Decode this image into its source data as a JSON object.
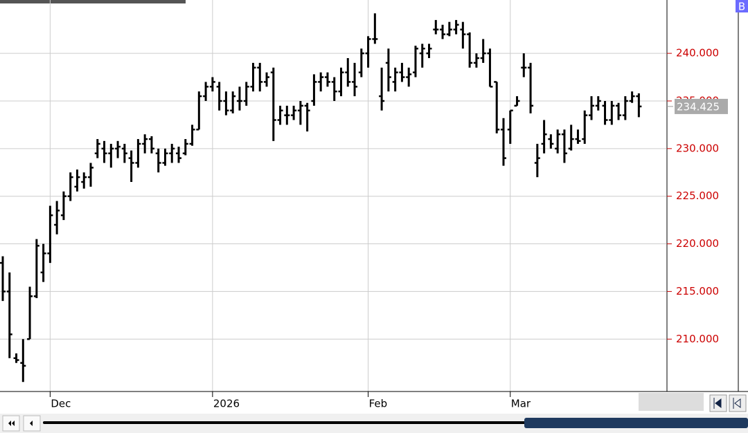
{
  "chart_data": {
    "type": "ohlc",
    "badge": "B",
    "categories": [
      null,
      null,
      null,
      null,
      null,
      null,
      null,
      "Dec",
      null,
      null,
      null,
      null,
      null,
      null,
      null,
      null,
      null,
      null,
      null,
      null,
      null,
      null,
      null,
      null,
      null,
      null,
      null,
      null,
      null,
      null,
      null,
      "2026",
      null,
      null,
      null,
      null,
      null,
      null,
      null,
      null,
      null,
      null,
      null,
      null,
      null,
      null,
      null,
      null,
      null,
      null,
      null,
      null,
      null,
      null,
      "Feb",
      null,
      null,
      null,
      null,
      null,
      null,
      null,
      null,
      null,
      null,
      null,
      null,
      null,
      null,
      null,
      null,
      null,
      null,
      null,
      null,
      "Mar",
      null,
      null,
      null,
      null,
      null,
      null,
      null,
      null,
      null,
      null,
      null,
      null,
      null,
      null,
      null,
      null,
      null,
      null,
      null
    ],
    "ohlc": [
      [
        218,
        218.7,
        214,
        215
      ],
      [
        215,
        217,
        208,
        210.5
      ],
      [
        208,
        208.5,
        207.5,
        207.8
      ],
      [
        207.5,
        210,
        205.5,
        207.2
      ],
      [
        210,
        215.5,
        210,
        214.5
      ],
      [
        214.5,
        220.5,
        214.3,
        219.8
      ],
      [
        217,
        220,
        216,
        219
      ],
      [
        219,
        224,
        218,
        223
      ],
      [
        222,
        224.5,
        221,
        223.5
      ],
      [
        223,
        225.5,
        222.5,
        225
      ],
      [
        225,
        227.5,
        224.5,
        227
      ],
      [
        226,
        227.8,
        225.5,
        227
      ],
      [
        226.5,
        227.5,
        225.8,
        227
      ],
      [
        227,
        228.5,
        226,
        228
      ],
      [
        229.5,
        231,
        229,
        230.5
      ],
      [
        230,
        230.8,
        228.5,
        229.5
      ],
      [
        229.5,
        230.5,
        228,
        230
      ],
      [
        230,
        230.8,
        229,
        230.2
      ],
      [
        230,
        230.5,
        228.5,
        229.5
      ],
      [
        229,
        229.8,
        226.5,
        228.5
      ],
      [
        228.5,
        231,
        228,
        230.5
      ],
      [
        230.5,
        231.5,
        229.5,
        231
      ],
      [
        231,
        231.3,
        229.5,
        230
      ],
      [
        229.5,
        230,
        227.5,
        228.5
      ],
      [
        228.5,
        230,
        228.2,
        229.5
      ],
      [
        229.5,
        230.5,
        228.5,
        230
      ],
      [
        229.5,
        230.2,
        228.5,
        229
      ],
      [
        229.5,
        231,
        229.3,
        230.5
      ],
      [
        230.5,
        232.5,
        230.3,
        232
      ],
      [
        232,
        236,
        232,
        235.5
      ],
      [
        235.5,
        237,
        235,
        236.5
      ],
      [
        236.5,
        237.5,
        236,
        237
      ],
      [
        236.5,
        237,
        234,
        235
      ],
      [
        235,
        236,
        233.5,
        234
      ],
      [
        234,
        236,
        233.7,
        235.5
      ],
      [
        235,
        236.5,
        234,
        235
      ],
      [
        235,
        237,
        234.5,
        236.5
      ],
      [
        236.5,
        239,
        236,
        238.5
      ],
      [
        238.5,
        239,
        236,
        237
      ],
      [
        237,
        238,
        236.5,
        237.5
      ],
      [
        238,
        238.5,
        230.8,
        233
      ],
      [
        233,
        234.5,
        232.5,
        234
      ],
      [
        233.5,
        234.5,
        232.5,
        233.5
      ],
      [
        233.5,
        234.5,
        233,
        234
      ],
      [
        234,
        235,
        232.5,
        234.5
      ],
      [
        234.5,
        234.8,
        231.8,
        234
      ],
      [
        235,
        237.8,
        234.5,
        237
      ],
      [
        237,
        238,
        236,
        237.5
      ],
      [
        237.5,
        238,
        236.5,
        237
      ],
      [
        237,
        237.5,
        235,
        236
      ],
      [
        236,
        238.5,
        235.5,
        238
      ],
      [
        238,
        239.5,
        236.5,
        237
      ],
      [
        237,
        239,
        235.5,
        236.5
      ],
      [
        238,
        240.5,
        237.5,
        240
      ],
      [
        240,
        241.8,
        238.5,
        241.5
      ],
      [
        241.5,
        244.2,
        241,
        241.5
      ],
      [
        235.5,
        238.5,
        234,
        235
      ],
      [
        239,
        240.5,
        236,
        237.5
      ],
      [
        237,
        238.5,
        236,
        238
      ],
      [
        238,
        239,
        237,
        237.5
      ],
      [
        237.5,
        238.5,
        236.5,
        237.8
      ],
      [
        238,
        240.8,
        237.5,
        240.5
      ],
      [
        240,
        241,
        238.5,
        240.5
      ],
      [
        240,
        241,
        239.5,
        240.5
      ],
      [
        242.5,
        243.5,
        242,
        242.5
      ],
      [
        242.5,
        243,
        241.5,
        242
      ],
      [
        242,
        243.3,
        241.8,
        242.5
      ],
      [
        242.5,
        243.5,
        242,
        243
      ],
      [
        242.5,
        243.3,
        240.5,
        242
      ],
      [
        242,
        242.2,
        238.5,
        239
      ],
      [
        239,
        240,
        238.5,
        239.5
      ],
      [
        239.5,
        241.5,
        239,
        240
      ],
      [
        240,
        240.5,
        236.5,
        236.5
      ],
      [
        237,
        237,
        231.6,
        232
      ],
      [
        232,
        233.2,
        228.2,
        229
      ],
      [
        232,
        234,
        230.5,
        234
      ],
      [
        234.5,
        235.5,
        234.5,
        235
      ],
      [
        238.5,
        240,
        237.5,
        238.5
      ],
      [
        238.5,
        239,
        233.7,
        234.5
      ],
      [
        228.5,
        230.5,
        227,
        229
      ],
      [
        230.5,
        233,
        229.5,
        231.5
      ],
      [
        231,
        231.5,
        230,
        230.5
      ],
      [
        230,
        232,
        229.5,
        231.5
      ],
      [
        231.5,
        232,
        228.5,
        229.5
      ],
      [
        230,
        232.5,
        229.8,
        231
      ],
      [
        231,
        232,
        230.5,
        230.8
      ],
      [
        231,
        234,
        230.5,
        233.5
      ],
      [
        233.5,
        235.5,
        233,
        234.5
      ],
      [
        234.5,
        235.5,
        234,
        235
      ],
      [
        234.5,
        235,
        232.5,
        233
      ],
      [
        233,
        235,
        232.5,
        234.5
      ],
      [
        234.5,
        234.8,
        233,
        233.5
      ],
      [
        233.5,
        235.5,
        233,
        235
      ],
      [
        235,
        236,
        234.8,
        235.5
      ],
      [
        235.5,
        235.8,
        233.3,
        234.425
      ]
    ],
    "color": "#000000",
    "tick_color": "#cc0000",
    "ylim": [
      204.5,
      245.6
    ],
    "yticks": [
      {
        "value": 210,
        "label": "210.000"
      },
      {
        "value": 215,
        "label": "215.000"
      },
      {
        "value": 220,
        "label": "220.000"
      },
      {
        "value": 225,
        "label": "225.000"
      },
      {
        "value": 230,
        "label": "230.000"
      },
      {
        "value": 235,
        "label": "235.000"
      },
      {
        "value": 240,
        "label": "240.000"
      }
    ],
    "last_price": {
      "value": 234.425,
      "label": "234.425"
    },
    "grid": true
  }
}
